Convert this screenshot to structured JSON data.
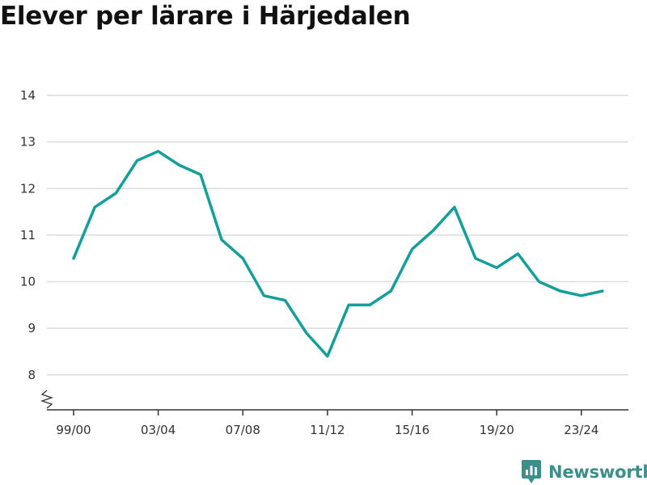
{
  "title": "Elever per lärare i Härjedalen",
  "brand": {
    "name": "Newsworthy",
    "icon": "newsworthy-logo-icon",
    "color": "#3a8f8a"
  },
  "chart_data": {
    "type": "line",
    "title": "Elever per lärare i Härjedalen",
    "xlabel": "",
    "ylabel": "",
    "x": [
      "99/00",
      "00/01",
      "01/02",
      "02/03",
      "03/04",
      "04/05",
      "05/06",
      "06/07",
      "07/08",
      "08/09",
      "09/10",
      "10/11",
      "11/12",
      "12/13",
      "13/14",
      "14/15",
      "15/16",
      "16/17",
      "17/18",
      "18/19",
      "19/20",
      "20/21",
      "21/22",
      "22/23",
      "23/24",
      "24/25"
    ],
    "x_tick_labels": [
      "99/00",
      "03/04",
      "07/08",
      "11/12",
      "15/16",
      "19/20",
      "23/24"
    ],
    "y_tick_labels": [
      "8",
      "9",
      "10",
      "11",
      "12",
      "13",
      "14"
    ],
    "ylim": [
      7.25,
      14
    ],
    "axis_break": true,
    "grid": true,
    "legend": "none",
    "series": [
      {
        "color": "#13a09a",
        "values": [
          10.5,
          11.6,
          11.9,
          12.6,
          12.8,
          12.5,
          12.3,
          10.9,
          10.5,
          9.7,
          9.6,
          8.9,
          8.4,
          9.5,
          9.5,
          9.8,
          10.7,
          11.1,
          11.6,
          10.5,
          10.3,
          10.6,
          10.0,
          9.8,
          9.7,
          9.8
        ]
      }
    ]
  }
}
